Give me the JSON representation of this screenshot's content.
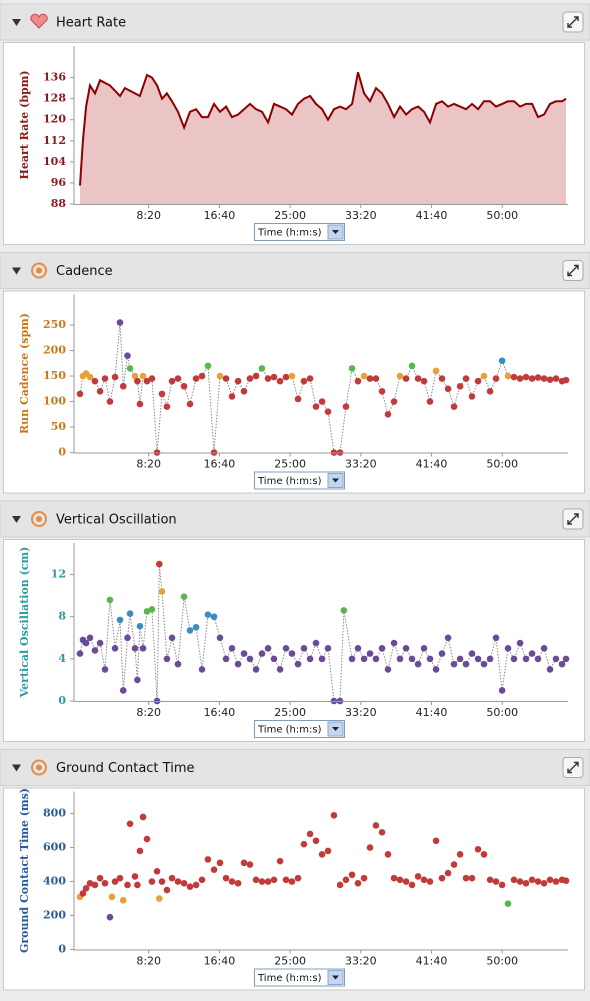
{
  "chart_data": [
    {
      "type": "area",
      "title": "Heart Rate",
      "y_label": "Heart Rate (bpm)",
      "x_label": "Time (h:m:s)",
      "axis_color": "#8b1a1a",
      "color": "#8b0000",
      "fill_color": "#ebc5c5",
      "xlim": [
        0,
        3465
      ],
      "xticks": [
        {
          "value": 500,
          "label": "8:20"
        },
        {
          "value": 1000,
          "label": "16:40"
        },
        {
          "value": 1500,
          "label": "25:00"
        },
        {
          "value": 2000,
          "label": "33:20"
        },
        {
          "value": 2500,
          "label": "41:40"
        },
        {
          "value": 3000,
          "label": "50:00"
        }
      ],
      "ylim": [
        88,
        148
      ],
      "yticks": [
        88,
        96,
        104,
        112,
        120,
        128,
        136
      ],
      "x": [
        14,
        35,
        57,
        85,
        120,
        156,
        191,
        226,
        262,
        297,
        332,
        368,
        403,
        438,
        488,
        523,
        559,
        594,
        629,
        665,
        707,
        750,
        792,
        835,
        877,
        919,
        962,
        1004,
        1047,
        1089,
        1132,
        1174,
        1216,
        1259,
        1301,
        1344,
        1386,
        1429,
        1471,
        1513,
        1556,
        1598,
        1641,
        1683,
        1726,
        1768,
        1810,
        1853,
        1895,
        1938,
        1980,
        2023,
        2065,
        2107,
        2150,
        2192,
        2235,
        2277,
        2320,
        2362,
        2405,
        2447,
        2489,
        2532,
        2574,
        2617,
        2659,
        2702,
        2744,
        2786,
        2829,
        2871,
        2914,
        2956,
        2999,
        3041,
        3083,
        3126,
        3168,
        3211,
        3253,
        3296,
        3338,
        3380,
        3423,
        3451
      ],
      "values": [
        95,
        112,
        125,
        133,
        130,
        135,
        134,
        133,
        131,
        129,
        132,
        131,
        130,
        129,
        137,
        136,
        133,
        128,
        130,
        127,
        123,
        117,
        123,
        124,
        121,
        121,
        126,
        123,
        125,
        121,
        122,
        124,
        126,
        124,
        123,
        119,
        126,
        125,
        124,
        122,
        126,
        128,
        129,
        126,
        124,
        120,
        124,
        125,
        124,
        126,
        138,
        130,
        127,
        132,
        130,
        126,
        121,
        125,
        122,
        124,
        125,
        123,
        119,
        126,
        127,
        125,
        126,
        125,
        124,
        126,
        124,
        127,
        127,
        125,
        126,
        127,
        127,
        125,
        126,
        126,
        121,
        122,
        126,
        127,
        127,
        128
      ]
    },
    {
      "type": "scatter",
      "title": "Cadence",
      "y_label": "Run Cadence (spm)",
      "x_label": "Time (h:m:s)",
      "axis_color": "#c8781a",
      "connector_color": "#888888",
      "xlim": [
        0,
        3465
      ],
      "xticks": [
        {
          "value": 500,
          "label": "8:20"
        },
        {
          "value": 1000,
          "label": "16:40"
        },
        {
          "value": 1500,
          "label": "25:00"
        },
        {
          "value": 2000,
          "label": "33:20"
        },
        {
          "value": 2500,
          "label": "41:40"
        },
        {
          "value": 3000,
          "label": "50:00"
        }
      ],
      "ylim": [
        0,
        310
      ],
      "yticks": [
        0,
        50,
        100,
        150,
        200,
        250
      ],
      "x": [
        14,
        35,
        57,
        85,
        120,
        156,
        191,
        226,
        262,
        297,
        320,
        350,
        368,
        403,
        420,
        438,
        460,
        488,
        523,
        559,
        594,
        629,
        665,
        707,
        750,
        792,
        835,
        877,
        919,
        962,
        1004,
        1047,
        1089,
        1132,
        1174,
        1216,
        1259,
        1301,
        1344,
        1386,
        1429,
        1471,
        1513,
        1556,
        1598,
        1641,
        1683,
        1726,
        1768,
        1810,
        1853,
        1895,
        1938,
        1980,
        2023,
        2065,
        2107,
        2150,
        2192,
        2235,
        2277,
        2320,
        2362,
        2405,
        2447,
        2489,
        2532,
        2574,
        2617,
        2659,
        2702,
        2744,
        2786,
        2829,
        2871,
        2914,
        2956,
        2999,
        3041,
        3083,
        3126,
        3168,
        3211,
        3253,
        3296,
        3338,
        3380,
        3423,
        3451
      ],
      "values": [
        115,
        150,
        155,
        148,
        140,
        120,
        145,
        100,
        148,
        255,
        130,
        190,
        165,
        150,
        140,
        95,
        150,
        140,
        145,
        0,
        115,
        90,
        140,
        145,
        130,
        95,
        145,
        150,
        170,
        0,
        150,
        145,
        110,
        140,
        120,
        145,
        150,
        165,
        145,
        148,
        140,
        148,
        150,
        105,
        140,
        145,
        90,
        100,
        80,
        0,
        0,
        90,
        165,
        140,
        150,
        145,
        145,
        120,
        75,
        100,
        150,
        145,
        170,
        145,
        140,
        100,
        160,
        145,
        125,
        90,
        130,
        145,
        110,
        140,
        150,
        120,
        145,
        180,
        150,
        148,
        145,
        148,
        145,
        147,
        145,
        143,
        145,
        140,
        142
      ],
      "colors": [
        "#c23b3b",
        "#e9a036",
        "#e9a036",
        "#e9a036",
        "#c23b3b",
        "#c23b3b",
        "#c23b3b",
        "#c23b3b",
        "#c23b3b",
        "#6a4b98",
        "#c23b3b",
        "#6a4b98",
        "#5db551",
        "#e9a036",
        "#c23b3b",
        "#c23b3b",
        "#e9a036",
        "#c23b3b",
        "#c23b3b",
        "#c23b3b",
        "#c23b3b",
        "#c23b3b",
        "#c23b3b",
        "#c23b3b",
        "#c23b3b",
        "#c23b3b",
        "#c23b3b",
        "#c23b3b",
        "#5db551",
        "#c23b3b",
        "#e9a036",
        "#c23b3b",
        "#c23b3b",
        "#c23b3b",
        "#c23b3b",
        "#c23b3b",
        "#c23b3b",
        "#5db551",
        "#c23b3b",
        "#c23b3b",
        "#c23b3b",
        "#c23b3b",
        "#e9a036",
        "#c23b3b",
        "#c23b3b",
        "#c23b3b",
        "#c23b3b",
        "#c23b3b",
        "#c23b3b",
        "#c23b3b",
        "#c23b3b",
        "#c23b3b",
        "#5db551",
        "#c23b3b",
        "#e9a036",
        "#c23b3b",
        "#c23b3b",
        "#c23b3b",
        "#c23b3b",
        "#c23b3b",
        "#e9a036",
        "#c23b3b",
        "#5db551",
        "#c23b3b",
        "#c23b3b",
        "#c23b3b",
        "#e9a036",
        "#c23b3b",
        "#c23b3b",
        "#c23b3b",
        "#c23b3b",
        "#c23b3b",
        "#c23b3b",
        "#c23b3b",
        "#e9a036",
        "#c23b3b",
        "#c23b3b",
        "#3a8cc1",
        "#e9a036",
        "#c23b3b",
        "#c23b3b",
        "#c23b3b",
        "#c23b3b",
        "#c23b3b",
        "#c23b3b",
        "#c23b3b",
        "#c23b3b",
        "#c23b3b",
        "#c23b3b"
      ]
    },
    {
      "type": "scatter",
      "title": "Vertical Oscillation",
      "y_label": "Vertical Oscillation (cm)",
      "x_label": "Time (h:m:s)",
      "axis_color": "#2a9ea0",
      "connector_color": "#888888",
      "xlim": [
        0,
        3465
      ],
      "xticks": [
        {
          "value": 500,
          "label": "8:20"
        },
        {
          "value": 1000,
          "label": "16:40"
        },
        {
          "value": 1500,
          "label": "25:00"
        },
        {
          "value": 2000,
          "label": "33:20"
        },
        {
          "value": 2500,
          "label": "41:40"
        },
        {
          "value": 3000,
          "label": "50:00"
        }
      ],
      "ylim": [
        0,
        15
      ],
      "yticks": [
        0,
        4,
        8,
        12
      ],
      "x": [
        14,
        35,
        57,
        85,
        120,
        156,
        191,
        226,
        262,
        297,
        320,
        350,
        368,
        403,
        420,
        438,
        460,
        488,
        523,
        559,
        575,
        594,
        629,
        665,
        707,
        750,
        792,
        835,
        877,
        919,
        962,
        1004,
        1047,
        1089,
        1132,
        1174,
        1216,
        1259,
        1301,
        1344,
        1386,
        1429,
        1471,
        1513,
        1556,
        1598,
        1641,
        1683,
        1726,
        1768,
        1810,
        1853,
        1880,
        1938,
        1980,
        2023,
        2065,
        2107,
        2150,
        2192,
        2235,
        2277,
        2320,
        2362,
        2405,
        2447,
        2489,
        2532,
        2574,
        2617,
        2659,
        2702,
        2744,
        2786,
        2829,
        2871,
        2914,
        2956,
        2999,
        3041,
        3083,
        3126,
        3168,
        3211,
        3253,
        3296,
        3338,
        3380,
        3423,
        3451
      ],
      "values": [
        4.5,
        5.8,
        5.5,
        6,
        4.8,
        5.5,
        3,
        9.6,
        5,
        7.7,
        1,
        6,
        8.3,
        5,
        2,
        7.1,
        5,
        8.5,
        8.7,
        0,
        13,
        10.4,
        4,
        6,
        3.5,
        9.9,
        6.7,
        7,
        3,
        8.2,
        8,
        6,
        4,
        5,
        3.5,
        4.5,
        4,
        3,
        4.5,
        5,
        4,
        3,
        5,
        4.5,
        3.5,
        5,
        4,
        5.5,
        4,
        5,
        0,
        0,
        8.6,
        4,
        5,
        4,
        4.5,
        4,
        5,
        3,
        5.5,
        4,
        5,
        4,
        3.5,
        5,
        4,
        3,
        4.5,
        6,
        3.5,
        4,
        3.5,
        4.5,
        4,
        3.5,
        4,
        6,
        1,
        5,
        4,
        5.5,
        4,
        4.5,
        4,
        5,
        3,
        4,
        3.5,
        4
      ],
      "colors": [
        "#6a4b98",
        "#6a4b98",
        "#6a4b98",
        "#6a4b98",
        "#6a4b98",
        "#6a4b98",
        "#6a4b98",
        "#5db551",
        "#6a4b98",
        "#3a8cc1",
        "#6a4b98",
        "#6a4b98",
        "#3a8cc1",
        "#6a4b98",
        "#6a4b98",
        "#3a8cc1",
        "#6a4b98",
        "#5db551",
        "#5db551",
        "#6a4b98",
        "#c23b3b",
        "#e9a036",
        "#6a4b98",
        "#6a4b98",
        "#6a4b98",
        "#5db551",
        "#3a8cc1",
        "#3a8cc1",
        "#6a4b98",
        "#3a8cc1",
        "#3a8cc1",
        "#6a4b98",
        "#6a4b98",
        "#6a4b98",
        "#6a4b98",
        "#6a4b98",
        "#6a4b98",
        "#6a4b98",
        "#6a4b98",
        "#6a4b98",
        "#6a4b98",
        "#6a4b98",
        "#6a4b98",
        "#6a4b98",
        "#6a4b98",
        "#6a4b98",
        "#6a4b98",
        "#6a4b98",
        "#6a4b98",
        "#6a4b98",
        "#6a4b98",
        "#6a4b98",
        "#5db551",
        "#6a4b98",
        "#6a4b98",
        "#6a4b98",
        "#6a4b98",
        "#6a4b98",
        "#6a4b98",
        "#6a4b98",
        "#6a4b98",
        "#6a4b98",
        "#6a4b98",
        "#6a4b98",
        "#6a4b98",
        "#6a4b98",
        "#6a4b98",
        "#6a4b98",
        "#6a4b98",
        "#6a4b98",
        "#6a4b98",
        "#6a4b98",
        "#6a4b98",
        "#6a4b98",
        "#6a4b98",
        "#6a4b98",
        "#6a4b98",
        "#6a4b98",
        "#6a4b98",
        "#6a4b98",
        "#6a4b98",
        "#6a4b98",
        "#6a4b98",
        "#6a4b98",
        "#6a4b98",
        "#6a4b98",
        "#6a4b98",
        "#6a4b98",
        "#6a4b98",
        "#6a4b98"
      ]
    },
    {
      "type": "scatter",
      "title": "Ground Contact Time",
      "y_label": "Ground Contact Time (ms)",
      "x_label": "Time (h:m:s)",
      "axis_color": "#2a5aa0",
      "xlim": [
        0,
        3465
      ],
      "xticks": [
        {
          "value": 500,
          "label": "8:20"
        },
        {
          "value": 1000,
          "label": "16:40"
        },
        {
          "value": 1500,
          "label": "25:00"
        },
        {
          "value": 2000,
          "label": "33:20"
        },
        {
          "value": 2500,
          "label": "41:40"
        },
        {
          "value": 3000,
          "label": "50:00"
        }
      ],
      "ylim": [
        0,
        930
      ],
      "yticks": [
        0,
        200,
        400,
        600,
        800
      ],
      "x": [
        14,
        35,
        57,
        85,
        120,
        156,
        191,
        226,
        240,
        262,
        297,
        320,
        350,
        368,
        403,
        420,
        438,
        460,
        488,
        523,
        559,
        575,
        594,
        629,
        665,
        707,
        750,
        792,
        835,
        877,
        919,
        962,
        1004,
        1047,
        1089,
        1132,
        1174,
        1216,
        1259,
        1301,
        1344,
        1386,
        1429,
        1471,
        1513,
        1556,
        1598,
        1641,
        1683,
        1726,
        1768,
        1810,
        1853,
        1895,
        1938,
        1980,
        2023,
        2065,
        2107,
        2150,
        2192,
        2235,
        2277,
        2320,
        2362,
        2405,
        2447,
        2489,
        2532,
        2574,
        2617,
        2659,
        2702,
        2744,
        2786,
        2829,
        2871,
        2914,
        2956,
        2999,
        3041,
        3083,
        3126,
        3168,
        3211,
        3253,
        3296,
        3338,
        3380,
        3423,
        3451
      ],
      "values": [
        310,
        330,
        360,
        390,
        380,
        420,
        390,
        190,
        310,
        400,
        420,
        290,
        380,
        740,
        430,
        380,
        580,
        780,
        650,
        400,
        460,
        300,
        400,
        350,
        420,
        400,
        390,
        370,
        380,
        410,
        530,
        470,
        510,
        420,
        400,
        390,
        510,
        500,
        410,
        400,
        400,
        410,
        520,
        410,
        400,
        420,
        620,
        680,
        640,
        560,
        580,
        790,
        380,
        410,
        440,
        390,
        420,
        600,
        730,
        690,
        560,
        420,
        410,
        400,
        380,
        430,
        410,
        400,
        640,
        420,
        450,
        500,
        560,
        420,
        420,
        590,
        560,
        410,
        400,
        380,
        270,
        410,
        400,
        390,
        410,
        400,
        390,
        410,
        400,
        410,
        405
      ],
      "colors": [
        "#e9a036",
        "#c23b3b",
        "#c23b3b",
        "#c23b3b",
        "#c23b3b",
        "#c23b3b",
        "#c23b3b",
        "#6a4b98",
        "#e9a036",
        "#c23b3b",
        "#c23b3b",
        "#e9a036",
        "#c23b3b",
        "#c23b3b",
        "#c23b3b",
        "#c23b3b",
        "#c23b3b",
        "#c23b3b",
        "#c23b3b",
        "#c23b3b",
        "#c23b3b",
        "#e9a036",
        "#c23b3b",
        "#c23b3b",
        "#c23b3b",
        "#c23b3b",
        "#c23b3b",
        "#c23b3b",
        "#c23b3b",
        "#c23b3b",
        "#c23b3b",
        "#c23b3b",
        "#c23b3b",
        "#c23b3b",
        "#c23b3b",
        "#c23b3b",
        "#c23b3b",
        "#c23b3b",
        "#c23b3b",
        "#c23b3b",
        "#c23b3b",
        "#c23b3b",
        "#c23b3b",
        "#c23b3b",
        "#c23b3b",
        "#c23b3b",
        "#c23b3b",
        "#c23b3b",
        "#c23b3b",
        "#c23b3b",
        "#c23b3b",
        "#c23b3b",
        "#c23b3b",
        "#c23b3b",
        "#c23b3b",
        "#c23b3b",
        "#c23b3b",
        "#c23b3b",
        "#c23b3b",
        "#c23b3b",
        "#c23b3b",
        "#c23b3b",
        "#c23b3b",
        "#c23b3b",
        "#c23b3b",
        "#c23b3b",
        "#c23b3b",
        "#c23b3b",
        "#c23b3b",
        "#c23b3b",
        "#c23b3b",
        "#c23b3b",
        "#c23b3b",
        "#c23b3b",
        "#c23b3b",
        "#c23b3b",
        "#c23b3b",
        "#c23b3b",
        "#c23b3b",
        "#c23b3b",
        "#5db551",
        "#c23b3b",
        "#c23b3b",
        "#c23b3b",
        "#c23b3b",
        "#c23b3b",
        "#c23b3b",
        "#c23b3b",
        "#c23b3b",
        "#c23b3b",
        "#c23b3b"
      ]
    }
  ]
}
